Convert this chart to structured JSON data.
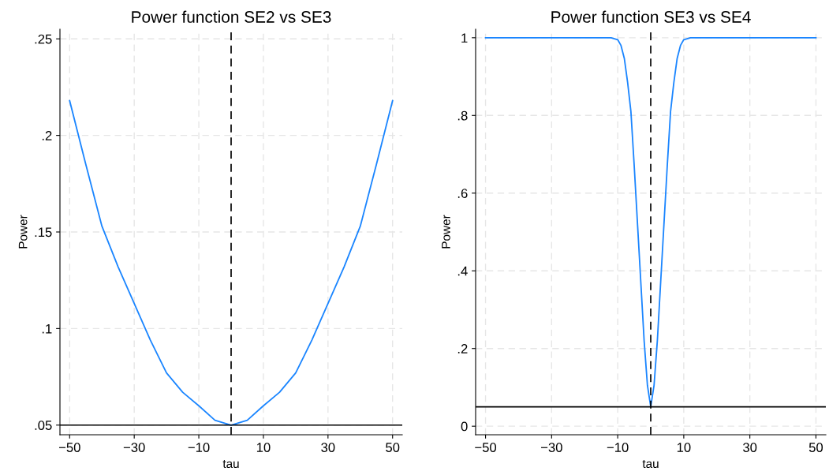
{
  "chart_data": [
    {
      "type": "line",
      "title": "Power function SE2 vs SE3",
      "xlabel": "tau",
      "ylabel": "Power",
      "xlim": [
        -53,
        53
      ],
      "ylim": [
        0.045,
        0.255
      ],
      "xticks": [
        {
          "value": -50,
          "label": "−50"
        },
        {
          "value": -30,
          "label": "−30"
        },
        {
          "value": -10,
          "label": "−10"
        },
        10,
        30,
        50
      ],
      "yticks": [
        {
          "value": 0.05,
          "label": ".05"
        },
        {
          "value": 0.1,
          "label": ".1"
        },
        {
          "value": 0.15,
          "label": ".15"
        },
        {
          "value": 0.2,
          "label": ".2"
        },
        {
          "value": 0.25,
          "label": ".25"
        }
      ],
      "grid": true,
      "ref_lines": [
        {
          "axis": "y",
          "value": 0.05,
          "color": "#000000",
          "line_style": "solid"
        },
        {
          "axis": "x",
          "value": 0,
          "color": "#000000",
          "line_style": "dashed"
        }
      ],
      "series": [
        {
          "color": "#1a85ff",
          "x": [
            -50,
            -45,
            -40,
            -35,
            -30,
            -25,
            -20,
            -15,
            -10,
            -5,
            0,
            5,
            10,
            15,
            20,
            25,
            30,
            35,
            40,
            45,
            50
          ],
          "values": [
            0.218,
            0.185,
            0.153,
            0.132,
            0.113,
            0.094,
            0.077,
            0.067,
            0.06,
            0.0525,
            0.05,
            0.0525,
            0.06,
            0.067,
            0.077,
            0.094,
            0.113,
            0.132,
            0.153,
            0.185,
            0.218
          ]
        }
      ]
    },
    {
      "type": "line",
      "title": "Power function SE3 vs SE4",
      "xlabel": "tau",
      "ylabel": "Power",
      "xlim": [
        -53,
        53
      ],
      "ylim": [
        -0.022,
        1.022
      ],
      "xticks": [
        {
          "value": -50,
          "label": "−50"
        },
        {
          "value": -30,
          "label": "−30"
        },
        {
          "value": -10,
          "label": "−10"
        },
        10,
        30,
        50
      ],
      "yticks": [
        0,
        {
          "value": 0.2,
          "label": ".2"
        },
        {
          "value": 0.4,
          "label": ".4"
        },
        {
          "value": 0.6,
          "label": ".6"
        },
        {
          "value": 0.8,
          "label": ".8"
        },
        1
      ],
      "grid": true,
      "ref_lines": [
        {
          "axis": "y",
          "value": 0.05,
          "color": "#000000",
          "line_style": "solid"
        },
        {
          "axis": "x",
          "value": 0,
          "color": "#000000",
          "line_style": "dashed"
        }
      ],
      "series": [
        {
          "color": "#1a85ff",
          "x": [
            -50,
            -12,
            -10,
            -9,
            -8,
            -7,
            -6,
            -5,
            -4,
            -3,
            -2,
            -1,
            0,
            1,
            2,
            3,
            4,
            5,
            6,
            7,
            8,
            9,
            10,
            12,
            50
          ],
          "values": [
            1,
            1,
            0.995,
            0.98,
            0.947,
            0.885,
            0.81,
            0.67,
            0.52,
            0.37,
            0.22,
            0.105,
            0.05,
            0.105,
            0.22,
            0.37,
            0.52,
            0.67,
            0.81,
            0.885,
            0.947,
            0.98,
            0.995,
            1,
            1
          ]
        }
      ]
    }
  ]
}
